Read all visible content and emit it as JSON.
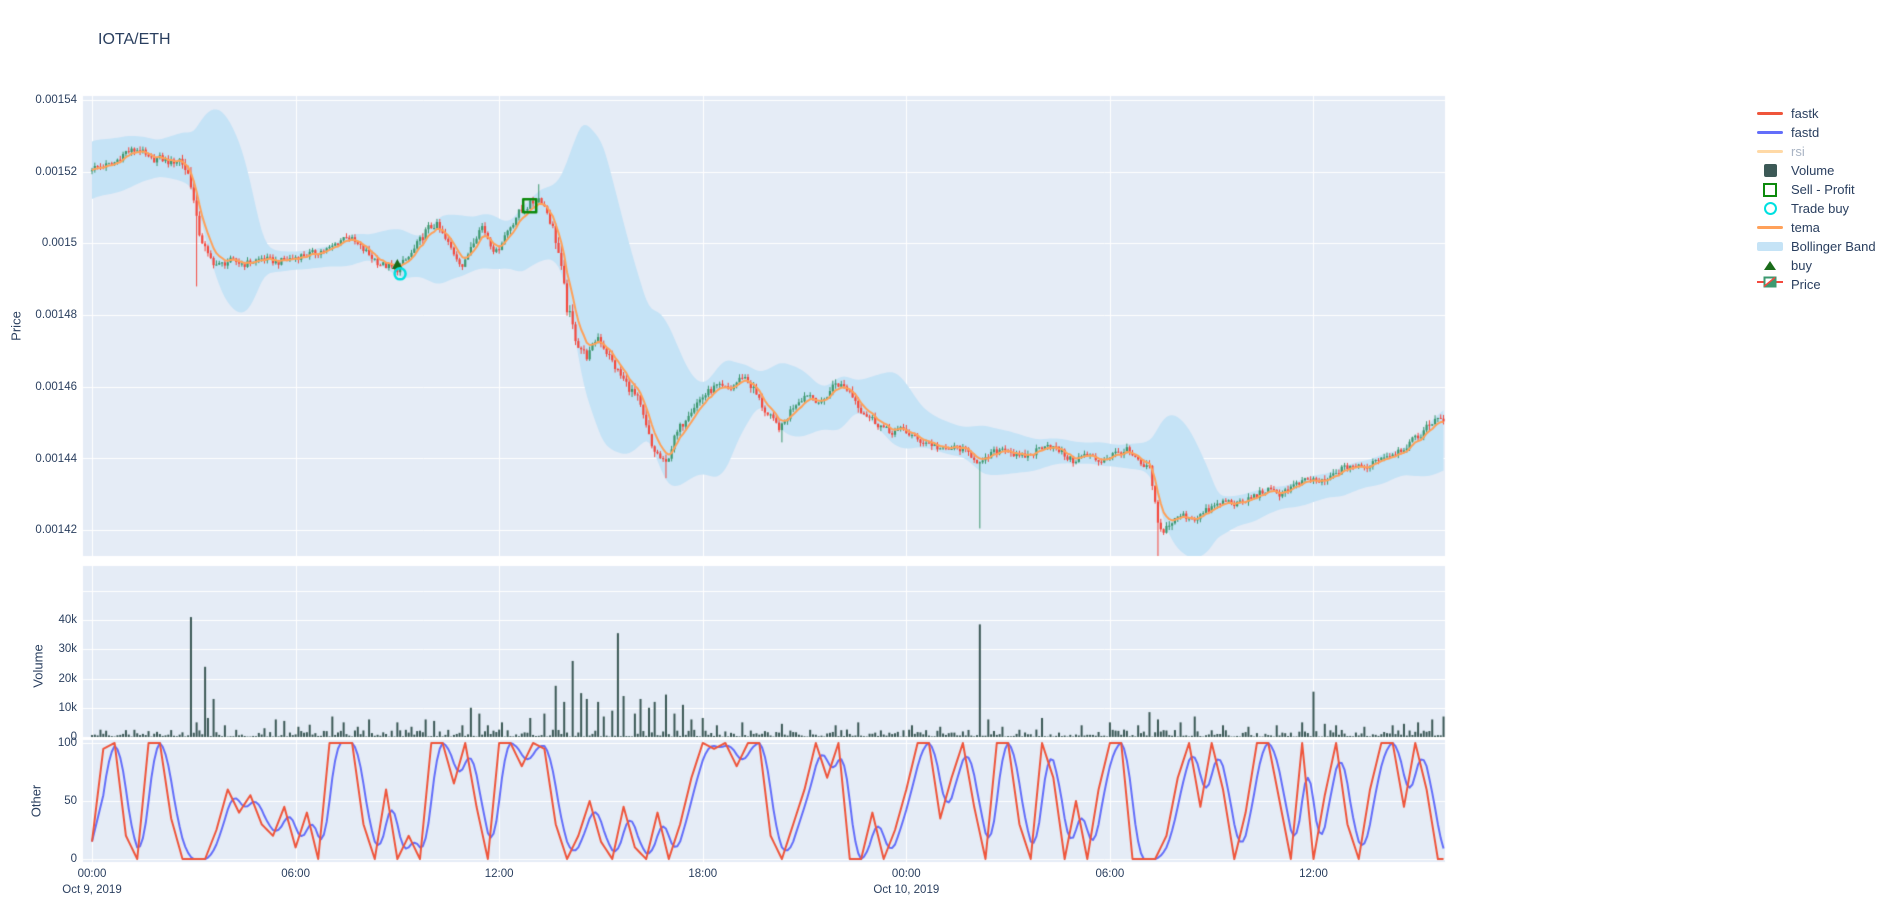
{
  "page": {
    "title": "IOTA/ETH"
  },
  "colors": {
    "text": "#2a3f5f",
    "muted_text": "#a9b4c4",
    "panel_bg": "#E5ECF6",
    "grid": "#ffffff",
    "fastk": "#EF553B",
    "fastd": "#636EFA",
    "rsi": "#FFD9A6",
    "volume": "#3C5956",
    "sell_profit": "#0C8A0C",
    "trade_buy": "#00E0E0",
    "tema": "#FFA15A",
    "bollinger": "#C5E3F6",
    "buy": "#1A6B1A",
    "candle_up": "#3D9970",
    "candle_down": "#F4493E"
  },
  "legend": {
    "items": [
      {
        "label": "fastk",
        "swatch": "line",
        "color": "#EF553B",
        "faded": false
      },
      {
        "label": "fastd",
        "swatch": "line",
        "color": "#636EFA",
        "faded": false
      },
      {
        "label": "rsi",
        "swatch": "line",
        "color": "#FFD9A6",
        "faded": true
      },
      {
        "label": "Volume",
        "swatch": "square",
        "color": "#3C5956",
        "faded": false
      },
      {
        "label": "Sell - Profit",
        "swatch": "square-outline",
        "color": "#0C8A0C",
        "faded": false
      },
      {
        "label": "Trade buy",
        "swatch": "circle-outline",
        "color": "#00E0E0",
        "faded": false
      },
      {
        "label": "tema",
        "swatch": "line",
        "color": "#FFA15A",
        "faded": false
      },
      {
        "label": "Bollinger Band",
        "swatch": "band",
        "color": "#C5E3F6",
        "faded": false
      },
      {
        "label": "buy",
        "swatch": "triangle",
        "color": "#1A6B1A",
        "faded": false
      },
      {
        "label": "Price",
        "swatch": "candle",
        "color": "#3D9970",
        "faded": false
      }
    ]
  },
  "axes": {
    "price": {
      "label": "Price",
      "ticks": [
        "0.00142",
        "0.00144",
        "0.00146",
        "0.00148",
        "0.0015",
        "0.00152",
        "0.00154"
      ],
      "tick_values": [
        0.00142,
        0.00144,
        0.00146,
        0.00148,
        0.0015,
        0.00152,
        0.00154
      ]
    },
    "volume": {
      "label": "Volume",
      "ticks": [
        "0",
        "10k",
        "20k",
        "30k",
        "40k"
      ],
      "tick_values": [
        0,
        10000,
        20000,
        30000,
        40000
      ]
    },
    "other": {
      "label": "Other",
      "ticks": [
        "0",
        "50",
        "100"
      ],
      "tick_values": [
        0,
        50,
        100
      ]
    },
    "x": {
      "tick_labels": [
        "00:00",
        "06:00",
        "12:00",
        "18:00",
        "00:00",
        "06:00",
        "12:00"
      ],
      "tick_hours": [
        0,
        6,
        12,
        18,
        24,
        30,
        36
      ],
      "date_labels": [
        {
          "hour": 0,
          "label": "Oct 9, 2019"
        },
        {
          "hour": 24,
          "label": "Oct 10, 2019"
        }
      ]
    }
  },
  "chart_data": {
    "type": "candlestick-multi-panel",
    "title": "IOTA/ETH",
    "panels": [
      "Price",
      "Volume",
      "Other"
    ],
    "candle_interval_minutes": 5,
    "hours_span": [
      0,
      39.83
    ],
    "x_unit": "hours since Oct 9, 2019 00:00",
    "price_close_waypoints": [
      [
        0,
        0.001521
      ],
      [
        0.3,
        0.0015215
      ],
      [
        0.6,
        0.001522
      ],
      [
        1.0,
        0.0015255
      ],
      [
        1.4,
        0.0015262
      ],
      [
        1.7,
        0.0015232
      ],
      [
        2.0,
        0.0015238
      ],
      [
        2.3,
        0.0015225
      ],
      [
        2.6,
        0.0015235
      ],
      [
        2.9,
        0.001518
      ],
      [
        3.1,
        0.001505
      ],
      [
        3.4,
        0.0014965
      ],
      [
        3.7,
        0.0014938
      ],
      [
        4.1,
        0.0014952
      ],
      [
        4.5,
        0.0014942
      ],
      [
        5.0,
        0.0014958
      ],
      [
        5.5,
        0.0014948
      ],
      [
        6.0,
        0.0014962
      ],
      [
        6.5,
        0.0014972
      ],
      [
        7.0,
        0.0014985
      ],
      [
        7.5,
        0.0015022
      ],
      [
        8.0,
        0.0014982
      ],
      [
        8.5,
        0.0014942
      ],
      [
        9.0,
        0.0014928
      ],
      [
        9.4,
        0.0014968
      ],
      [
        9.9,
        0.0015042
      ],
      [
        10.15,
        0.0015052
      ],
      [
        10.45,
        0.0015005
      ],
      [
        10.75,
        0.0014962
      ],
      [
        10.95,
        0.0014932
      ],
      [
        11.2,
        0.0015005
      ],
      [
        11.5,
        0.0015048
      ],
      [
        11.9,
        0.0014972
      ],
      [
        12.2,
        0.0015028
      ],
      [
        12.55,
        0.0015082
      ],
      [
        12.9,
        0.0015108
      ],
      [
        13.2,
        0.0015128
      ],
      [
        13.45,
        0.0015082
      ],
      [
        13.7,
        0.0015002
      ],
      [
        14.0,
        0.0014822
      ],
      [
        14.3,
        0.0014722
      ],
      [
        14.6,
        0.0014682
      ],
      [
        14.9,
        0.0014742
      ],
      [
        15.2,
        0.0014692
      ],
      [
        15.5,
        0.0014642
      ],
      [
        15.8,
        0.0014602
      ],
      [
        16.1,
        0.0014562
      ],
      [
        16.5,
        0.0014432
      ],
      [
        16.9,
        0.0014382
      ],
      [
        17.2,
        0.0014462
      ],
      [
        17.6,
        0.0014532
      ],
      [
        18.0,
        0.0014572
      ],
      [
        18.4,
        0.0014602
      ],
      [
        18.8,
        0.0014592
      ],
      [
        19.2,
        0.0014632
      ],
      [
        19.5,
        0.0014592
      ],
      [
        19.9,
        0.0014522
      ],
      [
        20.3,
        0.0014482
      ],
      [
        20.7,
        0.0014552
      ],
      [
        21.1,
        0.0014582
      ],
      [
        21.5,
        0.0014552
      ],
      [
        21.9,
        0.0014612
      ],
      [
        22.3,
        0.0014592
      ],
      [
        22.7,
        0.0014532
      ],
      [
        23.1,
        0.0014502
      ],
      [
        23.5,
        0.0014472
      ],
      [
        23.9,
        0.0014482
      ],
      [
        24.3,
        0.0014452
      ],
      [
        24.7,
        0.0014442
      ],
      [
        25.1,
        0.0014422
      ],
      [
        25.5,
        0.0014432
      ],
      [
        25.9,
        0.0014412
      ],
      [
        26.2,
        0.0014382
      ],
      [
        26.5,
        0.0014412
      ],
      [
        26.9,
        0.0014432
      ],
      [
        27.3,
        0.0014402
      ],
      [
        27.7,
        0.0014412
      ],
      [
        28.1,
        0.0014442
      ],
      [
        28.5,
        0.0014422
      ],
      [
        28.9,
        0.0014392
      ],
      [
        29.3,
        0.0014412
      ],
      [
        29.7,
        0.0014392
      ],
      [
        30.1,
        0.0014412
      ],
      [
        30.5,
        0.0014422
      ],
      [
        30.9,
        0.0014382
      ],
      [
        31.2,
        0.0014362
      ],
      [
        31.45,
        0.0014192
      ],
      [
        31.7,
        0.0014212
      ],
      [
        32.1,
        0.0014242
      ],
      [
        32.5,
        0.0014232
      ],
      [
        33.0,
        0.0014262
      ],
      [
        33.4,
        0.0014282
      ],
      [
        33.8,
        0.0014272
      ],
      [
        34.2,
        0.0014292
      ],
      [
        34.6,
        0.0014312
      ],
      [
        35.0,
        0.0014302
      ],
      [
        35.4,
        0.0014322
      ],
      [
        35.9,
        0.0014342
      ],
      [
        36.3,
        0.0014332
      ],
      [
        36.7,
        0.0014362
      ],
      [
        37.1,
        0.0014382
      ],
      [
        37.5,
        0.0014372
      ],
      [
        37.9,
        0.0014402
      ],
      [
        38.3,
        0.0014412
      ],
      [
        38.7,
        0.0014432
      ],
      [
        39.1,
        0.0014462
      ],
      [
        39.4,
        0.0014492
      ],
      [
        39.7,
        0.0014522
      ],
      [
        39.83,
        0.0014502
      ]
    ],
    "special_wicks": [
      [
        3.05,
        "low",
        0.001488
      ],
      [
        13.17,
        "high",
        0.0015165
      ],
      [
        16.9,
        "low",
        0.0014345
      ],
      [
        20.3,
        "low",
        0.0014445
      ],
      [
        26.2,
        "low",
        0.0014205
      ],
      [
        31.45,
        "low",
        0.0014085
      ]
    ],
    "band_width_hints": [
      [
        0,
        8e-06
      ],
      [
        1.0,
        7.5e-06
      ],
      [
        2.0,
        5e-06
      ],
      [
        3.1,
        8e-06
      ],
      [
        3.8,
        7e-06
      ],
      [
        4.6,
        3.5e-06
      ],
      [
        6.0,
        2.5e-06
      ],
      [
        7.5,
        3e-06
      ],
      [
        9.0,
        3.5e-06
      ],
      [
        10.5,
        4.5e-06
      ],
      [
        12.0,
        4e-06
      ],
      [
        13.2,
        4e-06
      ],
      [
        13.9,
        1.4e-05
      ],
      [
        14.5,
        3.8e-05
      ],
      [
        15.1,
        4.2e-05
      ],
      [
        15.8,
        3e-05
      ],
      [
        16.5,
        1.6e-05
      ],
      [
        17.3,
        9e-06
      ],
      [
        18.2,
        5e-06
      ],
      [
        19.3,
        4.5e-06
      ],
      [
        20.4,
        5e-06
      ],
      [
        21.5,
        4e-06
      ],
      [
        22.5,
        4e-06
      ],
      [
        23.5,
        3e-06
      ],
      [
        24.5,
        2.8e-06
      ],
      [
        25.5,
        3e-06
      ],
      [
        26.3,
        7e-06
      ],
      [
        27.0,
        6e-06
      ],
      [
        28.0,
        4e-06
      ],
      [
        29.0,
        3e-06
      ],
      [
        30.0,
        2.8e-06
      ],
      [
        31.1,
        4e-06
      ],
      [
        31.6,
        9e-06
      ],
      [
        32.3,
        8e-06
      ],
      [
        33.2,
        5e-06
      ],
      [
        34.2,
        3.5e-06
      ],
      [
        35.2,
        3e-06
      ],
      [
        36.2,
        3.5e-06
      ],
      [
        37.2,
        3e-06
      ],
      [
        38.2,
        3e-06
      ],
      [
        39.2,
        3.5e-06
      ],
      [
        39.83,
        4e-06
      ]
    ],
    "volume_spikes": [
      [
        2.95,
        41000
      ],
      [
        3.1,
        5000
      ],
      [
        3.3,
        24000
      ],
      [
        3.45,
        6500
      ],
      [
        3.6,
        13000
      ],
      [
        3.9,
        4000
      ],
      [
        5.1,
        3000
      ],
      [
        5.4,
        6000
      ],
      [
        5.7,
        5500
      ],
      [
        6.1,
        3500
      ],
      [
        6.4,
        4200
      ],
      [
        7.1,
        7000
      ],
      [
        7.4,
        5000
      ],
      [
        7.8,
        3500
      ],
      [
        8.2,
        6000
      ],
      [
        9.0,
        5000
      ],
      [
        9.4,
        3500
      ],
      [
        9.8,
        6000
      ],
      [
        10.1,
        5500
      ],
      [
        10.9,
        4000
      ],
      [
        11.2,
        10000
      ],
      [
        11.4,
        8000
      ],
      [
        11.7,
        4000
      ],
      [
        12.1,
        5000
      ],
      [
        12.9,
        6500
      ],
      [
        13.3,
        8000
      ],
      [
        13.7,
        17500
      ],
      [
        13.9,
        12000
      ],
      [
        14.2,
        26000
      ],
      [
        14.45,
        15000
      ],
      [
        14.6,
        13000
      ],
      [
        14.9,
        12000
      ],
      [
        15.1,
        7000
      ],
      [
        15.3,
        9000
      ],
      [
        15.5,
        35500
      ],
      [
        15.7,
        14000
      ],
      [
        16.0,
        8000
      ],
      [
        16.2,
        13000
      ],
      [
        16.4,
        10000
      ],
      [
        16.6,
        12000
      ],
      [
        16.9,
        14500
      ],
      [
        17.2,
        8000
      ],
      [
        17.4,
        11000
      ],
      [
        17.7,
        6000
      ],
      [
        18.0,
        6500
      ],
      [
        18.4,
        4000
      ],
      [
        19.2,
        5000
      ],
      [
        20.3,
        4500
      ],
      [
        21.9,
        4000
      ],
      [
        22.6,
        5000
      ],
      [
        24.2,
        4000
      ],
      [
        25.0,
        3500
      ],
      [
        26.2,
        38500
      ],
      [
        26.4,
        6000
      ],
      [
        26.8,
        3500
      ],
      [
        28.0,
        6500
      ],
      [
        29.2,
        4000
      ],
      [
        30.0,
        5000
      ],
      [
        30.8,
        4000
      ],
      [
        31.2,
        8500
      ],
      [
        31.4,
        6000
      ],
      [
        32.1,
        5000
      ],
      [
        32.5,
        7000
      ],
      [
        33.3,
        4000
      ],
      [
        34.1,
        3500
      ],
      [
        34.9,
        4000
      ],
      [
        35.7,
        5000
      ],
      [
        36.0,
        15500
      ],
      [
        36.3,
        4500
      ],
      [
        36.7,
        4000
      ],
      [
        37.5,
        3500
      ],
      [
        38.3,
        4000
      ],
      [
        38.7,
        4500
      ],
      [
        39.1,
        5000
      ],
      [
        39.5,
        6000
      ],
      [
        39.8,
        7000
      ]
    ],
    "volume_baseline_max": 2400,
    "fastk_20min": [
      15,
      95,
      100,
      20,
      0,
      100,
      100,
      35,
      0,
      0,
      0,
      25,
      60,
      40,
      55,
      30,
      20,
      45,
      10,
      40,
      0,
      100,
      100,
      100,
      30,
      0,
      60,
      0,
      20,
      0,
      100,
      100,
      65,
      100,
      45,
      0,
      100,
      100,
      80,
      100,
      95,
      30,
      0,
      20,
      50,
      15,
      0,
      45,
      10,
      0,
      40,
      0,
      30,
      70,
      100,
      95,
      100,
      80,
      100,
      100,
      20,
      0,
      30,
      60,
      100,
      70,
      100,
      0,
      0,
      40,
      0,
      25,
      60,
      100,
      100,
      35,
      70,
      100,
      45,
      0,
      100,
      100,
      30,
      0,
      100,
      70,
      0,
      50,
      0,
      60,
      100,
      100,
      0,
      0,
      0,
      20,
      70,
      100,
      45,
      100,
      60,
      0,
      40,
      100,
      100,
      50,
      0,
      100,
      0,
      55,
      100,
      30,
      0,
      60,
      100,
      100,
      45,
      100,
      60,
      0
    ],
    "oscillator_range": [
      0,
      100
    ],
    "trades": {
      "buy": [
        {
          "t": 9.0,
          "price": 0.001494
        }
      ],
      "trade_buy": [
        {
          "t": 9.08,
          "price": 0.0014915
        }
      ],
      "sell_profit": [
        {
          "t": 12.9,
          "price": 0.0015105
        }
      ]
    }
  }
}
